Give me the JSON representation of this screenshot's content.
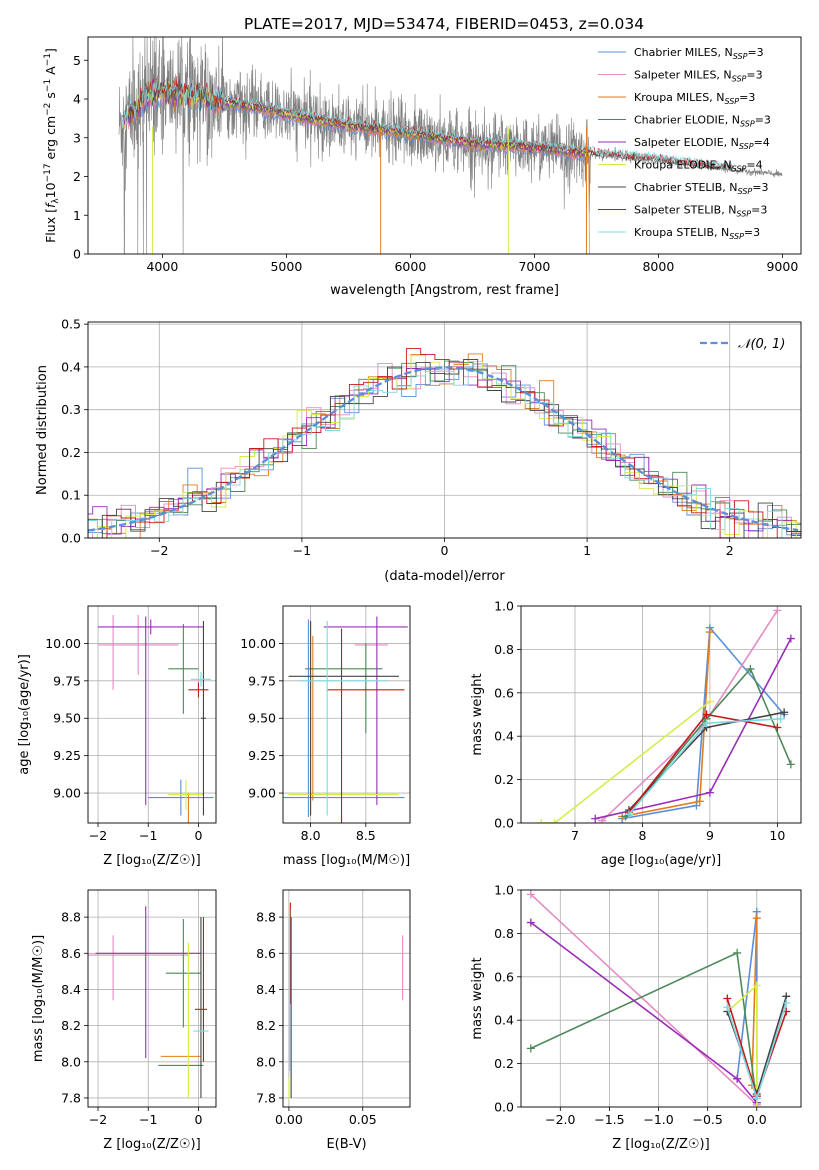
{
  "figure_title": "PLATE=2017, MJD=53474, FIBERID=0453, z=0.034",
  "colors": {
    "Chabrier MILES": "#5b8fd9",
    "Salpeter MILES": "#e58bc4",
    "Kroupa MILES": "#e07d1e",
    "Chabrier ELODIE": "#4d8a5a",
    "Salpeter ELODIE": "#9a2db8",
    "Kroupa ELODIE": "#d6ec4a",
    "Chabrier STELIB": "#444444",
    "Salpeter STELIB": "#c41a1a",
    "Kroupa STELIB": "#7dd8e0",
    "data": "#808080",
    "normal": "#5b8fd9"
  },
  "chart_data": [
    {
      "id": "spectrum",
      "type": "line",
      "title": "PLATE=2017, MJD=53474, FIBERID=0453, z=0.034",
      "xlabel": "wavelength [Angstrom, rest frame]",
      "ylabel_tex": "Flux [f_λ10^{-17} erg cm^{-2} s^{-1} A^{-1}]",
      "xlim": [
        3400,
        9150
      ],
      "ylim": [
        0,
        5.6
      ],
      "xticks": [
        4000,
        5000,
        6000,
        7000,
        8000,
        9000
      ],
      "yticks": [
        0,
        1,
        2,
        3,
        4,
        5
      ],
      "grid": false,
      "legend_position": "top-right",
      "continuum": {
        "x": [
          3650,
          3700,
          3800,
          3900,
          4000,
          4100,
          4300,
          4500,
          4800,
          5000,
          5500,
          6000,
          6500,
          7000,
          7500,
          8000,
          8500,
          9000
        ],
        "y": [
          3.3,
          3.5,
          3.8,
          4.1,
          4.2,
          4.15,
          4.05,
          3.9,
          3.75,
          3.6,
          3.3,
          3.1,
          2.85,
          2.75,
          2.55,
          2.4,
          2.2,
          2.05
        ]
      },
      "legend": [
        {
          "model": "Chabrier MILES",
          "label": "Chabrier MILES, N",
          "sub": "SSP",
          "suffix": "=3"
        },
        {
          "model": "Salpeter MILES",
          "label": "Salpeter MILES, N",
          "sub": "SSP",
          "suffix": "=3"
        },
        {
          "model": "Kroupa MILES",
          "label": "Kroupa MILES, N",
          "sub": "SSP",
          "suffix": "=3"
        },
        {
          "model": "Chabrier ELODIE",
          "label": "Chabrier ELODIE, N",
          "sub": "SSP",
          "suffix": "=3"
        },
        {
          "model": "Salpeter ELODIE",
          "label": "Salpeter ELODIE, N",
          "sub": "SSP",
          "suffix": "=4"
        },
        {
          "model": "Kroupa ELODIE",
          "label": "Kroupa ELODIE, N",
          "sub": "SSP",
          "suffix": "=4"
        },
        {
          "model": "Chabrier STELIB",
          "label": "Chabrier STELIB, N",
          "sub": "SSP",
          "suffix": "=3"
        },
        {
          "model": "Salpeter STELIB",
          "label": "Salpeter STELIB, N",
          "sub": "SSP",
          "suffix": "=3"
        },
        {
          "model": "Kroupa STELIB",
          "label": "Kroupa STELIB, N",
          "sub": "SSP",
          "suffix": "=3"
        }
      ]
    },
    {
      "id": "residuals",
      "type": "line",
      "xlabel": "(data-model)/error",
      "ylabel": "Normed distribution",
      "xlim": [
        -2.5,
        2.5
      ],
      "ylim": [
        0,
        0.505
      ],
      "xticks": [
        -2,
        -1,
        0,
        1,
        2
      ],
      "yticks": [
        0.0,
        0.1,
        0.2,
        0.3,
        0.4,
        0.5
      ],
      "grid": true,
      "legend_position": "top-right",
      "legend_label": "𝒩(0, 1)"
    },
    {
      "id": "age_vs_Z",
      "type": "errorbar",
      "xlabel": "Z [log₁₀(Z/Z☉)]",
      "ylabel": "age  [log₁₀(age/yr)]",
      "xlim": [
        -2.2,
        0.35
      ],
      "ylim": [
        8.8,
        10.25
      ],
      "xticks": [
        -2,
        -1,
        0
      ],
      "yticks": [
        9.0,
        9.25,
        9.5,
        9.75,
        10.0
      ],
      "grid": true,
      "points": [
        {
          "model": "Chabrier MILES",
          "x": -0.35,
          "xerr": 0.65,
          "y": 8.97,
          "yerr": 0.12
        },
        {
          "model": "Salpeter MILES",
          "x": -1.2,
          "xerr": 0.8,
          "y": 9.99,
          "yerr": 0.2
        },
        {
          "model": "Salpeter MILES",
          "x": -1.7,
          "xerr": 0.0,
          "y": 9.94,
          "yerr": 0.25
        },
        {
          "model": "Kroupa MILES",
          "x": -0.2,
          "xerr": 0.0,
          "y": 8.9,
          "yerr": 0.1
        },
        {
          "model": "Chabrier ELODIE",
          "x": -0.3,
          "xerr": 0.3,
          "y": 9.83,
          "yerr": 0.3
        },
        {
          "model": "Salpeter ELODIE",
          "x": -0.95,
          "xerr": 1.05,
          "y": 10.11,
          "yerr": 0.05
        },
        {
          "model": "Salpeter ELODIE",
          "x": -1.05,
          "xerr": 0.0,
          "y": 9.55,
          "yerr": 0.63
        },
        {
          "model": "Kroupa ELODIE",
          "x": -0.25,
          "xerr": 0.35,
          "y": 8.99,
          "yerr": 0.1
        },
        {
          "model": "Chabrier STELIB",
          "x": 0.1,
          "xerr": 0.05,
          "y": 9.5,
          "yerr": 0.65
        },
        {
          "model": "Salpeter STELIB",
          "x": 0.0,
          "xerr": 0.2,
          "y": 9.69,
          "yerr": 0.05
        },
        {
          "model": "Kroupa STELIB",
          "x": 0.05,
          "xerr": 0.2,
          "y": 9.76,
          "yerr": 0.05
        }
      ]
    },
    {
      "id": "age_vs_mass",
      "type": "errorbar",
      "xlabel": "mass [log₁₀(M/M☉)]",
      "xlim": [
        7.75,
        8.9
      ],
      "ylim": [
        8.8,
        10.25
      ],
      "xticks": [
        8.0,
        8.5
      ],
      "yticks": [
        9.0,
        9.25,
        9.5,
        9.75,
        10.0
      ],
      "grid": true,
      "points": [
        {
          "model": "Chabrier MILES",
          "x": 8.3,
          "xerr": 0.55,
          "y": 8.97,
          "yerr": 0.0
        },
        {
          "model": "Chabrier MILES",
          "x": 7.98,
          "xerr": 0.0,
          "y": 9.5,
          "yerr": 0.66
        },
        {
          "model": "Salpeter MILES",
          "x": 8.55,
          "xerr": 0.15,
          "y": 9.99,
          "yerr": 0.0
        },
        {
          "model": "Kroupa MILES",
          "x": 8.02,
          "xerr": 0.0,
          "y": 9.5,
          "yerr": 0.55
        },
        {
          "model": "Chabrier ELODIE",
          "x": 8.3,
          "xerr": 0.35,
          "y": 9.83,
          "yerr": 0.0
        },
        {
          "model": "Chabrier ELODIE",
          "x": 8.5,
          "xerr": 0.0,
          "y": 9.7,
          "yerr": 0.3
        },
        {
          "model": "Salpeter ELODIE",
          "x": 8.5,
          "xerr": 0.38,
          "y": 10.11,
          "yerr": 0.0
        },
        {
          "model": "Salpeter ELODIE",
          "x": 8.6,
          "xerr": 0.0,
          "y": 9.55,
          "yerr": 0.63
        },
        {
          "model": "Kroupa ELODIE",
          "x": 8.3,
          "xerr": 0.5,
          "y": 8.99,
          "yerr": 0.0
        },
        {
          "model": "Chabrier STELIB",
          "x": 8.3,
          "xerr": 0.5,
          "y": 9.78,
          "yerr": 0.0
        },
        {
          "model": "Chabrier STELIB",
          "x": 8.0,
          "xerr": 0.0,
          "y": 9.5,
          "yerr": 0.65
        },
        {
          "model": "Salpeter STELIB",
          "x": 8.5,
          "xerr": 0.35,
          "y": 9.69,
          "yerr": 0.0
        },
        {
          "model": "Salpeter STELIB",
          "x": 8.28,
          "xerr": 0.0,
          "y": 9.45,
          "yerr": 0.65
        },
        {
          "model": "Kroupa STELIB",
          "x": 8.3,
          "xerr": 0.4,
          "y": 9.75,
          "yerr": 0.0
        },
        {
          "model": "Kroupa STELIB",
          "x": 8.15,
          "xerr": 0.0,
          "y": 9.5,
          "yerr": 0.65
        }
      ]
    },
    {
      "id": "weight_vs_age",
      "type": "line",
      "xlabel": "age  [log₁₀(age/yr)]",
      "ylabel": "mass weight",
      "xlim": [
        6.2,
        10.35
      ],
      "ylim": [
        0,
        1.0
      ],
      "xticks": [
        7,
        8,
        9,
        10
      ],
      "yticks": [
        0.0,
        0.2,
        0.4,
        0.6,
        0.8,
        1.0
      ],
      "grid": true,
      "series": [
        {
          "model": "Chabrier MILES",
          "x": [
            7.7,
            8.8,
            9.0,
            10.1
          ],
          "y": [
            0.02,
            0.08,
            0.9,
            0.5
          ]
        },
        {
          "model": "Salpeter MILES",
          "x": [
            7.4,
            8.9,
            10.0
          ],
          "y": [
            0.01,
            0.45,
            0.98
          ]
        },
        {
          "model": "Kroupa MILES",
          "x": [
            7.7,
            8.85,
            9.0
          ],
          "y": [
            0.03,
            0.1,
            0.88
          ]
        },
        {
          "model": "Chabrier ELODIE",
          "x": [
            7.75,
            8.95,
            9.6,
            10.2
          ],
          "y": [
            0.03,
            0.48,
            0.71,
            0.27
          ]
        },
        {
          "model": "Salpeter ELODIE",
          "x": [
            7.3,
            9.0,
            10.2
          ],
          "y": [
            0.02,
            0.14,
            0.85
          ]
        },
        {
          "model": "Kroupa ELODIE",
          "x": [
            6.5,
            6.7,
            9.0
          ],
          "y": [
            0.0,
            0.0,
            0.56
          ]
        },
        {
          "model": "Chabrier STELIB",
          "x": [
            7.8,
            8.95,
            10.1
          ],
          "y": [
            0.06,
            0.44,
            0.51
          ]
        },
        {
          "model": "Salpeter STELIB",
          "x": [
            7.8,
            8.95,
            10.0
          ],
          "y": [
            0.05,
            0.5,
            0.44
          ]
        },
        {
          "model": "Kroupa STELIB",
          "x": [
            7.8,
            8.95,
            10.05
          ],
          "y": [
            0.04,
            0.46,
            0.48
          ]
        }
      ]
    },
    {
      "id": "mass_vs_Z",
      "type": "errorbar",
      "xlabel": "Z [log₁₀(Z/Z☉)]",
      "ylabel": "mass [log₁₀(M/M☉)]",
      "xlim": [
        -2.2,
        0.35
      ],
      "ylim": [
        7.75,
        8.95
      ],
      "xticks": [
        -2,
        -1,
        0
      ],
      "yticks": [
        7.8,
        8.0,
        8.2,
        8.4,
        8.6,
        8.8
      ],
      "grid": true,
      "points": [
        {
          "model": "Chabrier MILES",
          "x": -0.2,
          "xerr": 0.0,
          "y": 8.03,
          "yerr": 0.0
        },
        {
          "model": "Salpeter MILES",
          "x": -1.2,
          "xerr": 1.0,
          "y": 8.59,
          "yerr": 0.0
        },
        {
          "model": "Salpeter MILES",
          "x": -1.7,
          "xerr": 0.0,
          "y": 8.52,
          "yerr": 0.18
        },
        {
          "model": "Kroupa MILES",
          "x": -0.35,
          "xerr": 0.4,
          "y": 8.03,
          "yerr": 0.0
        },
        {
          "model": "Chabrier ELODIE",
          "x": -0.35,
          "xerr": 0.45,
          "y": 7.98,
          "yerr": 0.0
        },
        {
          "model": "Chabrier ELODIE",
          "x": -0.3,
          "xerr": 0.35,
          "y": 8.49,
          "yerr": 0.3
        },
        {
          "model": "Salpeter ELODIE",
          "x": -1.05,
          "xerr": 0.0,
          "y": 8.44,
          "yerr": 0.42
        },
        {
          "model": "Salpeter ELODIE",
          "x": -1.0,
          "xerr": 1.05,
          "y": 8.6,
          "yerr": 0.0
        },
        {
          "model": "Kroupa ELODIE",
          "x": -0.2,
          "xerr": 0.0,
          "y": 8.23,
          "yerr": 0.43
        },
        {
          "model": "Chabrier STELIB",
          "x": 0.05,
          "xerr": 0.0,
          "y": 8.3,
          "yerr": 0.5
        },
        {
          "model": "Salpeter STELIB",
          "x": 0.05,
          "xerr": 0.12,
          "y": 8.29,
          "yerr": 0.0
        },
        {
          "model": "Salpeter STELIB",
          "x": 0.1,
          "xerr": 0.0,
          "y": 8.4,
          "yerr": 0.4
        },
        {
          "model": "Kroupa STELIB",
          "x": 0.05,
          "xerr": 0.15,
          "y": 8.17,
          "yerr": 0.0
        }
      ]
    },
    {
      "id": "mass_vs_ebv",
      "type": "errorbar",
      "xlabel": "E(B-V)",
      "xlim": [
        -0.004,
        0.082
      ],
      "ylim": [
        7.75,
        8.95
      ],
      "xticks": [
        0.0,
        0.05
      ],
      "yticks": [
        7.8,
        8.0,
        8.2,
        8.4,
        8.6,
        8.8
      ],
      "grid": true,
      "points": [
        {
          "model": "Salpeter MILES",
          "x": 0.077,
          "xerr": 0.0,
          "y": 8.52,
          "yerr": 0.18
        },
        {
          "model": "Salpeter STELIB",
          "x": 0.001,
          "xerr": 0.0,
          "y": 8.6,
          "yerr": 0.28
        },
        {
          "model": "Chabrier STELIB",
          "x": 0.0015,
          "xerr": 0.0,
          "y": 8.3,
          "yerr": 0.5
        },
        {
          "model": "Kroupa STELIB",
          "x": 0.0005,
          "xerr": 0.0,
          "y": 8.4,
          "yerr": 0.45
        },
        {
          "model": "Kroupa ELODIE",
          "x": 0.0,
          "xerr": 0.0,
          "y": 7.85,
          "yerr": 0.06
        }
      ]
    },
    {
      "id": "weight_vs_Z",
      "type": "line",
      "xlabel": "Z [log₁₀(Z/Z☉)]",
      "ylabel": "mass weight",
      "xlim": [
        -2.4,
        0.45
      ],
      "ylim": [
        0,
        1.0
      ],
      "xticks": [
        -2.0,
        -1.5,
        -1.0,
        -0.5,
        0.0
      ],
      "yticks": [
        0.0,
        0.2,
        0.4,
        0.6,
        0.8,
        1.0
      ],
      "grid": true,
      "series": [
        {
          "model": "Chabrier MILES",
          "x": [
            -0.2,
            0.0,
            0.0
          ],
          "y": [
            0.13,
            0.9,
            0.05
          ]
        },
        {
          "model": "Salpeter MILES",
          "x": [
            -2.3,
            0.0
          ],
          "y": [
            0.98,
            0.01
          ]
        },
        {
          "model": "Kroupa MILES",
          "x": [
            0.0,
            -0.05
          ],
          "y": [
            0.87,
            0.1
          ]
        },
        {
          "model": "Chabrier ELODIE",
          "x": [
            -2.3,
            -0.2,
            0.0
          ],
          "y": [
            0.27,
            0.71,
            0.02
          ]
        },
        {
          "model": "Salpeter ELODIE",
          "x": [
            -2.3,
            -0.2,
            0.0
          ],
          "y": [
            0.85,
            0.13,
            0.02
          ]
        },
        {
          "model": "Kroupa ELODIE",
          "x": [
            -0.3,
            0.0,
            0.0
          ],
          "y": [
            0.44,
            0.56,
            0.0
          ]
        },
        {
          "model": "Chabrier STELIB",
          "x": [
            -0.3,
            0.0,
            0.3
          ],
          "y": [
            0.44,
            0.06,
            0.51
          ]
        },
        {
          "model": "Salpeter STELIB",
          "x": [
            -0.3,
            0.0,
            0.3
          ],
          "y": [
            0.5,
            0.05,
            0.44
          ]
        },
        {
          "model": "Kroupa STELIB",
          "x": [
            -0.3,
            0.0,
            0.3
          ],
          "y": [
            0.46,
            0.04,
            0.48
          ]
        }
      ]
    }
  ]
}
